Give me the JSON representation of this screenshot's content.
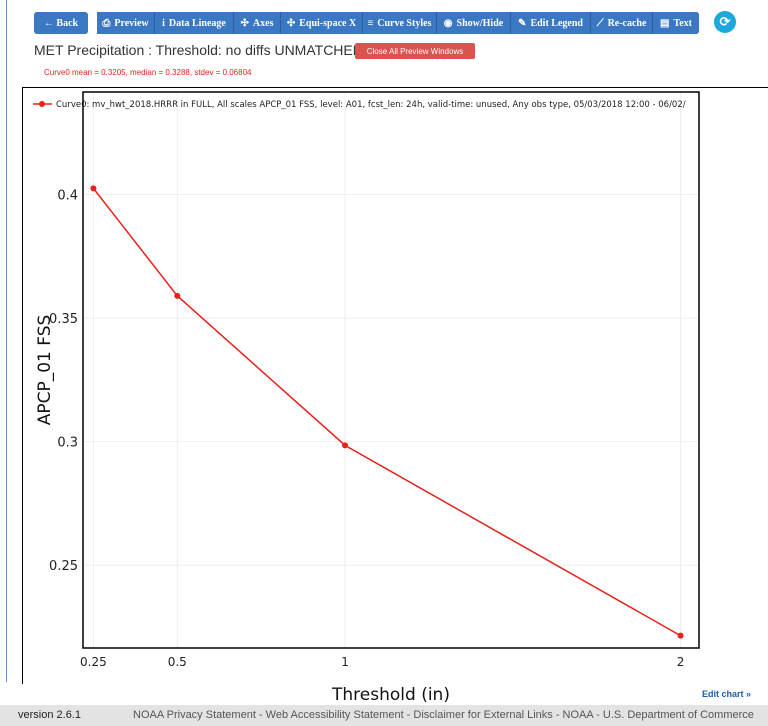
{
  "toolbar": {
    "back": "← Back",
    "preview": "Preview",
    "data_lineage": "Data Lineage",
    "axes": "Axes",
    "equispace": "Equi-space X",
    "curve_styles": "Curve Styles",
    "show_hide": "Show/Hide",
    "edit_legend": "Edit Legend",
    "recache": "Re-cache",
    "text": "Text"
  },
  "header": {
    "title": "MET Precipitation : Threshold: no diffs UNMATCHED",
    "close_button": "Close All Preview Windows",
    "stats": "Curve0 mean = 0.3205, median = 0.3288, stdev = 0.06804"
  },
  "colors": {
    "toolbar": "#3a78c3",
    "curve": "#e8211a",
    "close": "#d9534f",
    "refresh": "#1ca7dd"
  },
  "chart_data": {
    "type": "line",
    "legend": "Curve0: mv_hwt_2018.HRRR in FULL, All scales APCP_01 FSS, level: A01, fcst_len: 24h, valid-time: unused, Any obs type, 05/03/2018 12:00 - 06/02/",
    "legend_position": "top-left",
    "xlabel": "Threshold (in)",
    "ylabel": "APCP_01 FSS",
    "x_ticks": [
      "0.25",
      "0.5",
      "1",
      "2"
    ],
    "y_ticks": [
      "0.25",
      "0.3",
      "0.35",
      "0.4"
    ],
    "xlim": [
      0.219,
      2.055
    ],
    "ylim": [
      0.2165,
      0.4415
    ],
    "grid": true,
    "series": [
      {
        "name": "Curve0",
        "x": [
          0.25,
          0.5,
          1,
          2
        ],
        "y": [
          0.4025,
          0.359,
          0.2985,
          0.2215
        ]
      }
    ]
  },
  "links": {
    "edit_chart": "Edit chart »"
  },
  "footer": {
    "version": "version 2.6.1",
    "links": "NOAA Privacy Statement - Web Accessibility Statement - Disclaimer for External Links - NOAA - U.S. Department of Commerce"
  }
}
